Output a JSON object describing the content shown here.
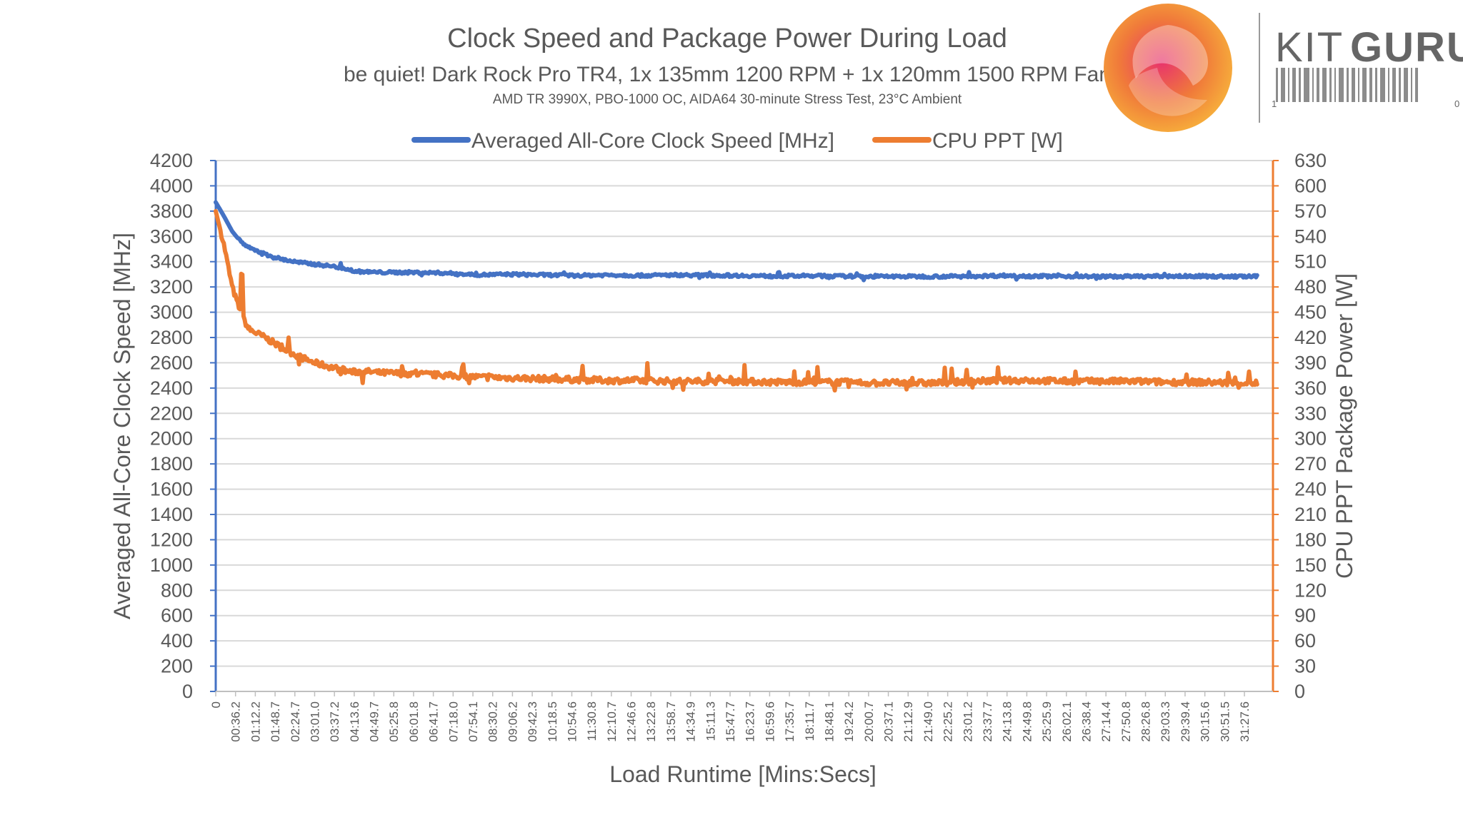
{
  "chart_data": {
    "type": "line",
    "title": "Clock Speed and Package Power During Load",
    "subtitle": "be quiet! Dark Rock Pro TR4, 1x 135mm 1200 RPM + 1x 120mm 1500 RPM Fan",
    "note": "AMD TR 3990X, PBO-1000 OC, AIDA64 30-minute Stress Test, 23°C Ambient",
    "xlabel": "Load Runtime [Mins:Secs]",
    "ylabel_left": "Averaged All-Core Clock Speed [MHz]",
    "ylabel_right": "CPU PPT Package Power [W]",
    "ylim_left": [
      0,
      4200
    ],
    "ylim_right": [
      0,
      630
    ],
    "y_ticks_left": [
      0,
      200,
      400,
      600,
      800,
      1000,
      1200,
      1400,
      1600,
      1800,
      2000,
      2200,
      2400,
      2600,
      2800,
      3000,
      3200,
      3400,
      3600,
      3800,
      4000,
      4200
    ],
    "y_ticks_right": [
      0,
      30,
      60,
      90,
      120,
      150,
      180,
      210,
      240,
      270,
      300,
      330,
      360,
      390,
      420,
      450,
      480,
      510,
      540,
      570,
      600,
      630
    ],
    "x_tick_labels": [
      "0",
      "00:36.2",
      "01:12.2",
      "01:48.7",
      "02:24.7",
      "03:01.0",
      "03:37.2",
      "04:13.6",
      "04:49.7",
      "05:25.8",
      "06:01.8",
      "06:41.7",
      "07:18.0",
      "07:54.1",
      "08:30.2",
      "09:06.2",
      "09:42.3",
      "10:18.5",
      "10:54.6",
      "11:30.8",
      "12:10.7",
      "12:46.6",
      "13:22.8",
      "13:58.7",
      "14:34.9",
      "15:11.3",
      "15:47.7",
      "16:23.7",
      "16:59.6",
      "17:35.7",
      "18:11.7",
      "18:48.1",
      "19:24.2",
      "20:00.7",
      "20:37.1",
      "21:12.9",
      "21:49.0",
      "22:25.2",
      "23:01.2",
      "23:37.7",
      "24:13.8",
      "24:49.8",
      "25:25.9",
      "26:02.1",
      "26:38.4",
      "27:14.4",
      "27:50.8",
      "28:26.8",
      "29:03.3",
      "29:39.4",
      "30:15.6",
      "30:51.5",
      "31:27.6"
    ],
    "x_minutes": [
      0,
      0.25,
      0.5,
      0.75,
      1,
      1.5,
      2,
      2.5,
      3,
      3.5,
      4,
      4.2,
      4.5,
      5,
      6,
      7,
      8,
      9,
      10,
      11,
      12,
      13,
      14,
      15,
      16,
      17,
      18,
      19,
      20,
      21,
      22,
      23,
      24,
      25,
      26,
      27,
      28,
      29,
      30,
      31,
      32
    ],
    "series": [
      {
        "name": "Averaged All-Core Clock Speed [MHz]",
        "axis": "left",
        "color": "#4472C4",
        "values": [
          3870,
          3760,
          3640,
          3560,
          3510,
          3460,
          3420,
          3395,
          3380,
          3365,
          3345,
          3325,
          3320,
          3315,
          3315,
          3310,
          3295,
          3300,
          3295,
          3290,
          3295,
          3290,
          3295,
          3292,
          3290,
          3285,
          3288,
          3285,
          3283,
          3283,
          3283,
          3285,
          3290,
          3285,
          3285,
          3282,
          3283,
          3285,
          3285,
          3282,
          3283
        ]
      },
      {
        "name": "CPU PPT [W]",
        "axis": "right",
        "color": "#ED7D31",
        "values": [
          570,
          530,
          480,
          450,
          430,
          420,
          408,
          398,
          390,
          385,
          380,
          379,
          380,
          378,
          377,
          375,
          373,
          372,
          371,
          370,
          369,
          369,
          368,
          368,
          368,
          367,
          367,
          367,
          366,
          366,
          366,
          368,
          369,
          369,
          368,
          368,
          368,
          367,
          367,
          366,
          366
        ]
      }
    ]
  },
  "brand": {
    "name_light": "KIT",
    "name_bold": "GURU",
    "barcode_left": "1",
    "barcode_right": "0"
  }
}
